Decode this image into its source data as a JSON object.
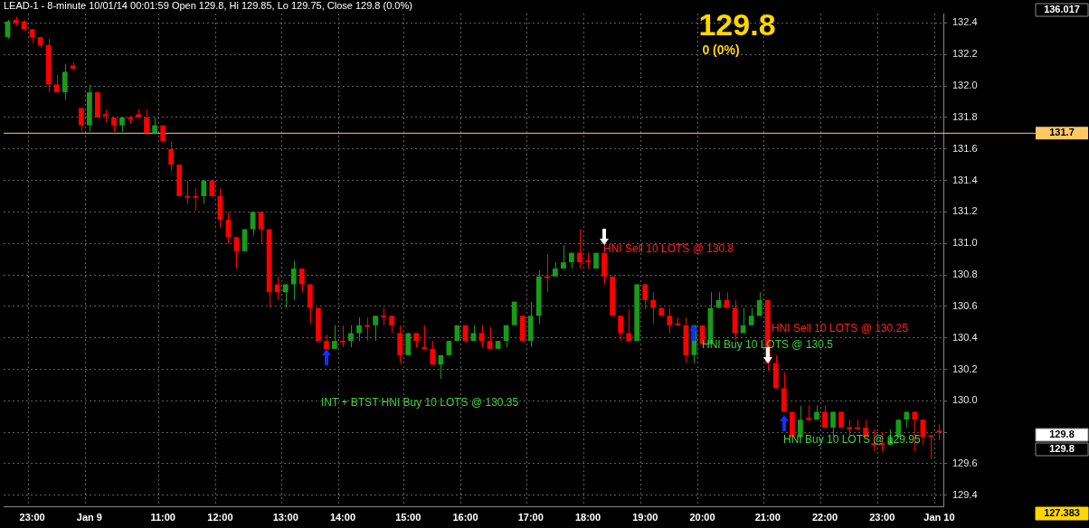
{
  "chart_data": {
    "type": "candlestick",
    "title": "LEAD-1 - 8-minute 10/01/14 00:01:59 Open 129.8, Hi 129.85, Lo 129.75, Close 129.8 (0.0%)",
    "categories": [
      null,
      null,
      null,
      "23:00",
      null,
      null,
      null,
      null,
      null,
      null,
      "Jan 9",
      null,
      null,
      null,
      null,
      null,
      null,
      null,
      null,
      "11:00",
      null,
      null,
      null,
      null,
      null,
      null,
      "12:00",
      null,
      null,
      null,
      null,
      null,
      null,
      null,
      "13:00",
      null,
      null,
      null,
      null,
      null,
      null,
      "14:00",
      null,
      null,
      null,
      null,
      null,
      null,
      null,
      "15:00",
      null,
      null,
      null,
      null,
      null,
      null,
      "16:00",
      null,
      null,
      null,
      null,
      null,
      null,
      null,
      "17:00",
      null,
      null,
      null,
      null,
      null,
      null,
      "18:00",
      null,
      null,
      null,
      null,
      null,
      null,
      "19:00",
      null,
      null,
      null,
      null,
      null,
      null,
      "20:00",
      null,
      null,
      null,
      null,
      null,
      null,
      null,
      "21:00",
      null,
      null,
      null,
      null,
      null,
      null,
      "22:00",
      null,
      null,
      null,
      null,
      null,
      null,
      "23:00",
      null,
      null,
      null,
      null,
      null,
      null,
      "Jan 10"
    ],
    "ohlc": [
      [
        132.31,
        132.42,
        132.3,
        132.41
      ],
      [
        132.42,
        132.44,
        132.38,
        132.4
      ],
      [
        132.41,
        132.42,
        132.35,
        132.36
      ],
      [
        132.36,
        132.36,
        132.27,
        132.31
      ],
      [
        132.31,
        132.31,
        132.24,
        132.26
      ],
      [
        132.26,
        132.3,
        131.96,
        132.01
      ],
      [
        132.01,
        132.07,
        131.96,
        131.96
      ],
      [
        131.96,
        132.14,
        131.91,
        132.09
      ],
      [
        132.13,
        132.15,
        132.1,
        132.11
      ],
      [
        131.86,
        131.86,
        131.71,
        131.75
      ],
      [
        131.75,
        132.01,
        131.71,
        131.96
      ],
      [
        131.96,
        131.96,
        131.8,
        131.8
      ],
      [
        131.82,
        131.85,
        131.77,
        131.81
      ],
      [
        131.8,
        131.8,
        131.71,
        131.75
      ],
      [
        131.75,
        131.8,
        131.71,
        131.8
      ],
      [
        131.8,
        131.81,
        131.76,
        131.79
      ],
      [
        131.82,
        131.85,
        131.8,
        131.8
      ],
      [
        131.8,
        131.85,
        131.7,
        131.7
      ],
      [
        131.7,
        131.8,
        131.7,
        131.75
      ],
      [
        131.75,
        131.75,
        131.65,
        131.65
      ],
      [
        131.6,
        131.65,
        131.46,
        131.5
      ],
      [
        131.5,
        131.5,
        131.3,
        131.3
      ],
      [
        131.3,
        131.4,
        131.25,
        131.29
      ],
      [
        131.3,
        131.35,
        131.21,
        131.29
      ],
      [
        131.3,
        131.4,
        131.25,
        131.4
      ],
      [
        131.4,
        131.4,
        131.3,
        131.3
      ],
      [
        131.3,
        131.35,
        131.1,
        131.15
      ],
      [
        131.15,
        131.2,
        131.0,
        131.04
      ],
      [
        131.04,
        131.04,
        130.84,
        130.95
      ],
      [
        130.95,
        131.09,
        130.95,
        131.09
      ],
      [
        131.09,
        131.2,
        131.05,
        131.2
      ],
      [
        131.2,
        131.2,
        131.0,
        131.09
      ],
      [
        131.09,
        131.09,
        130.59,
        130.69
      ],
      [
        130.74,
        130.79,
        130.64,
        130.69
      ],
      [
        130.69,
        130.74,
        130.59,
        130.74
      ],
      [
        130.74,
        130.89,
        130.64,
        130.84
      ],
      [
        130.84,
        130.84,
        130.69,
        130.74
      ],
      [
        130.74,
        130.74,
        130.49,
        130.59
      ],
      [
        130.59,
        130.59,
        130.38,
        130.38
      ],
      [
        130.38,
        130.42,
        130.33,
        130.33
      ],
      [
        130.33,
        130.48,
        130.33,
        130.38
      ],
      [
        130.38,
        130.48,
        130.34,
        130.37
      ],
      [
        130.38,
        130.48,
        130.34,
        130.43
      ],
      [
        130.43,
        130.53,
        130.38,
        130.48
      ],
      [
        130.48,
        130.53,
        130.38,
        130.47
      ],
      [
        130.48,
        130.54,
        130.38,
        130.54
      ],
      [
        130.54,
        130.59,
        130.48,
        130.53
      ],
      [
        130.54,
        130.54,
        130.43,
        130.48
      ],
      [
        130.43,
        130.48,
        130.24,
        130.29
      ],
      [
        130.29,
        130.43,
        130.29,
        130.43
      ],
      [
        130.43,
        130.43,
        130.34,
        130.38
      ],
      [
        130.34,
        130.48,
        130.33,
        130.33
      ],
      [
        130.33,
        130.38,
        130.23,
        130.23
      ],
      [
        130.23,
        130.29,
        130.14,
        130.29
      ],
      [
        130.29,
        130.38,
        130.29,
        130.38
      ],
      [
        130.38,
        130.48,
        130.38,
        130.48
      ],
      [
        130.48,
        130.48,
        130.38,
        130.38
      ],
      [
        130.38,
        130.48,
        130.38,
        130.43
      ],
      [
        130.43,
        130.48,
        130.34,
        130.38
      ],
      [
        130.38,
        130.47,
        130.33,
        130.33
      ],
      [
        130.33,
        130.38,
        130.33,
        130.38
      ],
      [
        130.38,
        130.48,
        130.34,
        130.48
      ],
      [
        130.48,
        130.63,
        130.48,
        130.63
      ],
      [
        130.54,
        130.54,
        130.38,
        130.38
      ],
      [
        130.38,
        130.63,
        130.34,
        130.54
      ],
      [
        130.54,
        130.83,
        130.49,
        130.79
      ],
      [
        130.79,
        130.93,
        130.69,
        130.78
      ],
      [
        130.79,
        130.88,
        130.79,
        130.84
      ],
      [
        130.84,
        130.99,
        130.84,
        130.88
      ],
      [
        130.88,
        130.94,
        130.84,
        130.94
      ],
      [
        130.94,
        131.09,
        130.84,
        130.88
      ],
      [
        130.89,
        130.94,
        130.84,
        130.88
      ],
      [
        130.84,
        130.94,
        130.84,
        130.94
      ],
      [
        130.94,
        130.94,
        130.74,
        130.79
      ],
      [
        130.79,
        130.79,
        130.54,
        130.54
      ],
      [
        130.54,
        130.54,
        130.38,
        130.43
      ],
      [
        130.43,
        130.58,
        130.38,
        130.38
      ],
      [
        130.38,
        130.74,
        130.38,
        130.74
      ],
      [
        130.74,
        130.74,
        130.58,
        130.64
      ],
      [
        130.64,
        130.69,
        130.49,
        130.59
      ],
      [
        130.59,
        130.59,
        130.54,
        130.54
      ],
      [
        130.54,
        130.59,
        130.43,
        130.48
      ],
      [
        130.49,
        130.53,
        130.48,
        130.48
      ],
      [
        130.48,
        130.53,
        130.24,
        130.29
      ],
      [
        130.29,
        130.48,
        130.24,
        130.48
      ],
      [
        130.48,
        130.48,
        130.36,
        130.36
      ],
      [
        130.36,
        130.69,
        130.36,
        130.59
      ],
      [
        130.59,
        130.69,
        130.59,
        130.64
      ],
      [
        130.64,
        130.69,
        130.59,
        130.59
      ],
      [
        130.59,
        130.64,
        130.38,
        130.43
      ],
      [
        130.43,
        130.59,
        130.43,
        130.48
      ],
      [
        130.48,
        130.59,
        130.48,
        130.54
      ],
      [
        130.54,
        130.69,
        130.54,
        130.64
      ],
      [
        130.64,
        130.64,
        130.19,
        130.24
      ],
      [
        130.24,
        130.29,
        130.08,
        130.08
      ],
      [
        130.08,
        130.18,
        129.93,
        129.93
      ],
      [
        129.93,
        129.93,
        129.77,
        129.77
      ],
      [
        129.77,
        129.97,
        129.77,
        129.88
      ],
      [
        129.89,
        129.97,
        129.87,
        129.88
      ],
      [
        129.88,
        129.97,
        129.88,
        129.93
      ],
      [
        129.93,
        129.97,
        129.83,
        129.83
      ],
      [
        129.83,
        129.93,
        129.77,
        129.93
      ],
      [
        129.93,
        129.93,
        129.83,
        129.83
      ],
      [
        129.83,
        129.88,
        129.77,
        129.82
      ],
      [
        129.83,
        129.88,
        129.82,
        129.82
      ],
      [
        129.83,
        129.88,
        129.77,
        129.77
      ],
      [
        129.73,
        129.82,
        129.68,
        129.72
      ],
      [
        129.73,
        129.8,
        129.68,
        129.72
      ],
      [
        129.72,
        129.82,
        129.72,
        129.77
      ],
      [
        129.77,
        129.88,
        129.77,
        129.88
      ],
      [
        129.88,
        129.93,
        129.83,
        129.93
      ],
      [
        129.93,
        129.93,
        129.68,
        129.88
      ],
      [
        129.88,
        129.88,
        129.72,
        129.77
      ],
      [
        129.78,
        129.78,
        129.63,
        129.77
      ],
      [
        129.8,
        129.85,
        129.75,
        129.8
      ]
    ],
    "colors": [
      "#1a9a1a",
      "#ff0000",
      "#ff0000",
      "#ff0000",
      "#ff0000",
      "#ff0000",
      "#ff0000",
      "#1a9a1a",
      "#ff0000",
      "#ff0000",
      "#1a9a1a",
      "#ff0000",
      "#ff0000",
      "#ff0000",
      "#1a9a1a",
      "#ff0000",
      "#ff0000",
      "#ff0000",
      "#1a9a1a",
      "#ff0000",
      "#ff0000",
      "#ff0000",
      "#ff0000",
      "#ff0000",
      "#1a9a1a",
      "#ff0000",
      "#ff0000",
      "#ff0000",
      "#ff0000",
      "#1a9a1a",
      "#1a9a1a",
      "#ff0000",
      "#ff0000",
      "#ff0000",
      "#1a9a1a",
      "#1a9a1a",
      "#ff0000",
      "#ff0000",
      "#ff0000",
      "#ff0000",
      "#1a9a1a",
      "#ff0000",
      "#1a9a1a",
      "#1a9a1a",
      "#ff0000",
      "#1a9a1a",
      "#ff0000",
      "#ff0000",
      "#ff0000",
      "#1a9a1a",
      "#ff0000",
      "#ff0000",
      "#ff0000",
      "#1a9a1a",
      "#1a9a1a",
      "#1a9a1a",
      "#ff0000",
      "#1a9a1a",
      "#ff0000",
      "#ff0000",
      "#1a9a1a",
      "#1a9a1a",
      "#1a9a1a",
      "#ff0000",
      "#1a9a1a",
      "#1a9a1a",
      "#ff0000",
      "#1a9a1a",
      "#1a9a1a",
      "#1a9a1a",
      "#ff0000",
      "#ff0000",
      "#1a9a1a",
      "#ff0000",
      "#ff0000",
      "#ff0000",
      "#ff0000",
      "#1a9a1a",
      "#ff0000",
      "#ff0000",
      "#ff0000",
      "#ff0000",
      "#ff0000",
      "#ff0000",
      "#1a9a1a",
      "#ff0000",
      "#1a9a1a",
      "#1a9a1a",
      "#ff0000",
      "#ff0000",
      "#1a9a1a",
      "#1a9a1a",
      "#1a9a1a",
      "#ff0000",
      "#ff0000",
      "#ff0000",
      "#ff0000",
      "#1a9a1a",
      "#ff0000",
      "#1a9a1a",
      "#ff0000",
      "#1a9a1a",
      "#ff0000",
      "#ff0000",
      "#ff0000",
      "#ff0000",
      "#ff0000",
      "#ff0000",
      "#1a9a1a",
      "#1a9a1a",
      "#1a9a1a",
      "#ff0000",
      "#ff0000",
      "#ff0000",
      "#ff0000"
    ],
    "ylim": [
      129.33,
      132.46
    ],
    "yticks": [
      {
        "value": 129.4,
        "label": "129.4"
      },
      {
        "value": 129.6,
        "label": "129.6"
      },
      {
        "value": 129.8,
        "label": null
      },
      {
        "value": 130,
        "label": "130.0"
      },
      {
        "value": 130.2,
        "label": "130.2"
      },
      {
        "value": 130.4,
        "label": "130.4"
      },
      {
        "value": 130.6,
        "label": "130.6"
      },
      {
        "value": 130.8,
        "label": "130.8"
      },
      {
        "value": 131,
        "label": "131.0"
      },
      {
        "value": 131.2,
        "label": "131.2"
      },
      {
        "value": 131.4,
        "label": "131.4"
      },
      {
        "value": 131.6,
        "label": "131.6"
      },
      {
        "value": 131.8,
        "label": "131.8"
      },
      {
        "value": 132,
        "label": "132.0"
      },
      {
        "value": 132.2,
        "label": "132.2"
      },
      {
        "value": 132.4,
        "label": "132.4"
      }
    ],
    "grid": true,
    "ref_lines": [
      {
        "axis": "y",
        "value": 131.7,
        "label": "131.7",
        "color": "#ffc864"
      }
    ],
    "annotations": [
      "129.8",
      "0 (0%)",
      "136.017",
      "127.383",
      "129.8",
      "129.8",
      "HNI Sell 10 LOTS @ 130.8",
      "HNI Sell 10 LOTS @ 130.25",
      "HNI Buy 10 LOTS @ 130.5",
      "INT + BTST HNI Buy 10 LOTS @ 130.35",
      "HNI Buy 10 LOTS @ 129.95"
    ]
  }
}
